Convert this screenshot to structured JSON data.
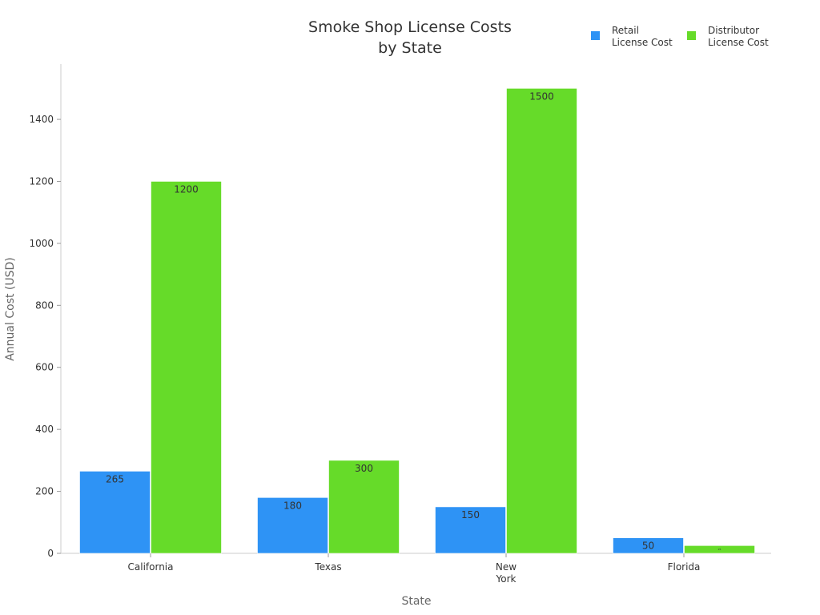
{
  "chart_data": {
    "type": "bar",
    "title": [
      "Smoke Shop License Costs",
      "by State"
    ],
    "xlabel": "State",
    "ylabel": "Annual Cost (USD)",
    "categories": [
      [
        "California"
      ],
      [
        "Texas"
      ],
      [
        "New",
        "York"
      ],
      [
        "Florida"
      ]
    ],
    "series": [
      {
        "name": [
          "Retail",
          "License Cost"
        ],
        "color": "#2e93f5",
        "values": [
          265,
          180,
          150,
          50
        ]
      },
      {
        "name": [
          "Distributor",
          "License Cost"
        ],
        "color": "#66db29",
        "values": [
          1200,
          300,
          1500,
          25
        ]
      }
    ],
    "ylim": [
      0,
      1575
    ],
    "yticks": [
      0,
      200,
      400,
      600,
      800,
      1000,
      1200,
      1400
    ],
    "grid": false,
    "legend": "top-right"
  }
}
